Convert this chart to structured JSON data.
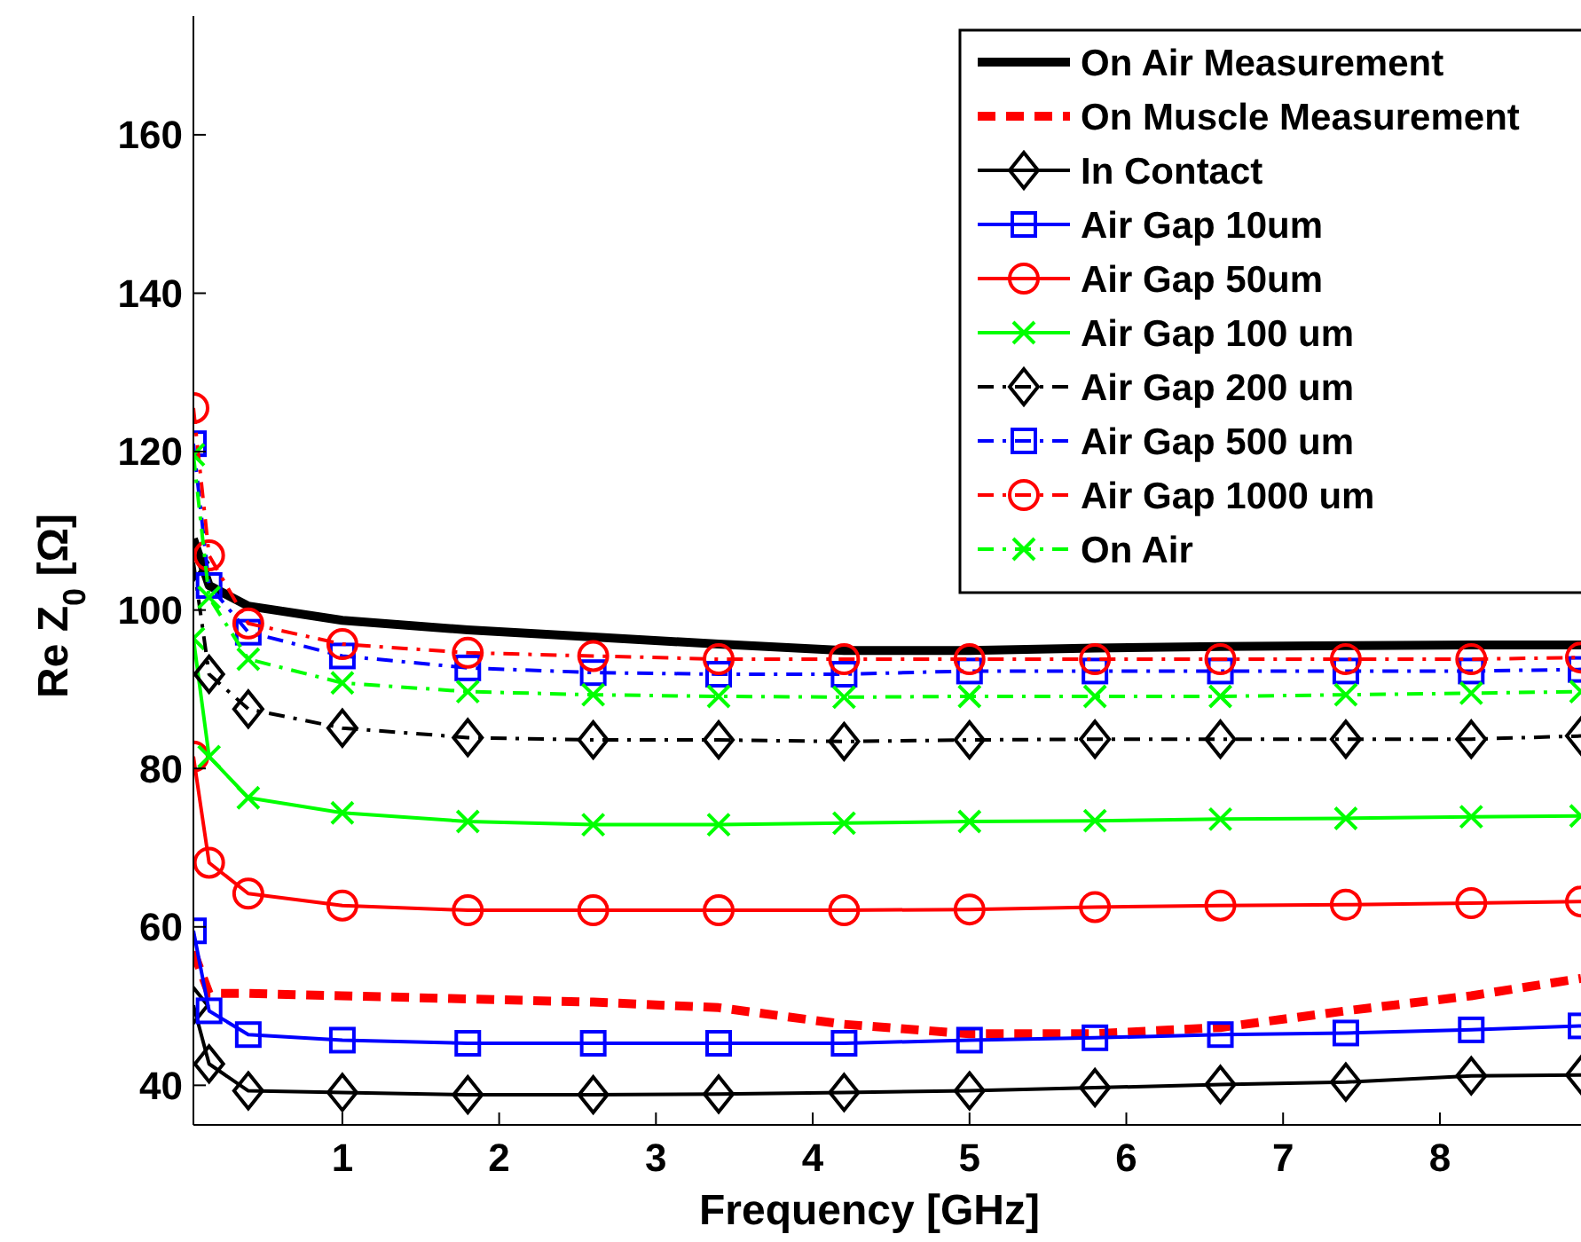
{
  "chart_data": {
    "type": "line",
    "xlabel": "Frequency [GHz]",
    "ylabel": "Re Z$_{0}$ [Ω]",
    "x": [
      0.05,
      0.15,
      0.4,
      1,
      1.8,
      2.6,
      3.4,
      4.2,
      5,
      5.8,
      6.6,
      7.4,
      8.2,
      8.9
    ],
    "xlim": [
      0.05,
      8.9
    ],
    "xticks": [
      1,
      2,
      3,
      4,
      5,
      6,
      7,
      8
    ],
    "ylim": [
      35,
      175
    ],
    "yticks": [
      40,
      60,
      80,
      100,
      120,
      140,
      160
    ],
    "grid": false,
    "legend": "top right",
    "series": [
      {
        "name": "On Air Measurement",
        "color": "#000000",
        "marker": "none",
        "line_style": "solid",
        "values": [
          109,
          103.1,
          100.5,
          98.7,
          97.5,
          96.6,
          95.7,
          94.9,
          94.9,
          95.2,
          95.4,
          95.5,
          95.6,
          95.6
        ]
      },
      {
        "name": "On Muscle Measurement",
        "color": "#ff0000",
        "marker": "none",
        "line_style": "dashed",
        "values": [
          56.9,
          51.6,
          51.6,
          51.3,
          50.9,
          50.5,
          49.8,
          47.7,
          46.5,
          46.5,
          47.3,
          49.4,
          51.3,
          53.5
        ]
      },
      {
        "name": "In Contact",
        "color": "#000000",
        "marker": "diamond",
        "line_style": "solid",
        "values": [
          50.1,
          42.7,
          39.3,
          39.1,
          38.8,
          38.8,
          38.9,
          39.1,
          39.3,
          39.7,
          40.1,
          40.4,
          41.2,
          41.3
        ]
      },
      {
        "name": "Air Gap 10um",
        "color": "#0000ff",
        "marker": "square",
        "line_style": "solid",
        "values": [
          59.5,
          49.4,
          46.4,
          45.7,
          45.3,
          45.3,
          45.3,
          45.3,
          45.7,
          46.0,
          46.4,
          46.6,
          47.0,
          47.5
        ]
      },
      {
        "name": "Air Gap 50um",
        "color": "#ff0000",
        "marker": "circle",
        "line_style": "solid",
        "values": [
          81.5,
          68.1,
          64.2,
          62.7,
          62.1,
          62.1,
          62.1,
          62.1,
          62.2,
          62.5,
          62.7,
          62.8,
          63.0,
          63.2
        ]
      },
      {
        "name": "Air Gap 100 um",
        "color": "#00ff00",
        "marker": "cross",
        "line_style": "solid",
        "values": [
          96.4,
          81.5,
          76.3,
          74.4,
          73.3,
          72.9,
          72.9,
          73.1,
          73.3,
          73.4,
          73.6,
          73.7,
          73.9,
          74.0
        ]
      },
      {
        "name": "Air Gap 200 um",
        "color": "#000000",
        "marker": "diamond",
        "line_style": "dashdot",
        "values": [
          106,
          91.9,
          87.5,
          85.1,
          83.9,
          83.6,
          83.6,
          83.4,
          83.6,
          83.7,
          83.7,
          83.7,
          83.7,
          84.1
        ]
      },
      {
        "name": "Air Gap 500 um",
        "color": "#0000ff",
        "marker": "square",
        "line_style": "dashdot",
        "values": [
          121,
          103.1,
          97.2,
          94.2,
          92.7,
          92.1,
          91.9,
          91.9,
          92.3,
          92.3,
          92.3,
          92.3,
          92.3,
          92.5
        ]
      },
      {
        "name": "Air Gap 1000 um",
        "color": "#ff0000",
        "marker": "circle",
        "line_style": "dashdot",
        "values": [
          125.5,
          106.9,
          98.3,
          95.7,
          94.6,
          94.2,
          93.8,
          93.8,
          93.8,
          93.8,
          93.8,
          93.8,
          93.8,
          94.0
        ]
      },
      {
        "name": "On Air",
        "color": "#00ff00",
        "marker": "cross",
        "line_style": "dashdot",
        "values": [
          119.6,
          101.6,
          93.8,
          90.8,
          89.7,
          89.3,
          89.1,
          89.0,
          89.1,
          89.1,
          89.1,
          89.3,
          89.5,
          89.7
        ]
      }
    ]
  }
}
